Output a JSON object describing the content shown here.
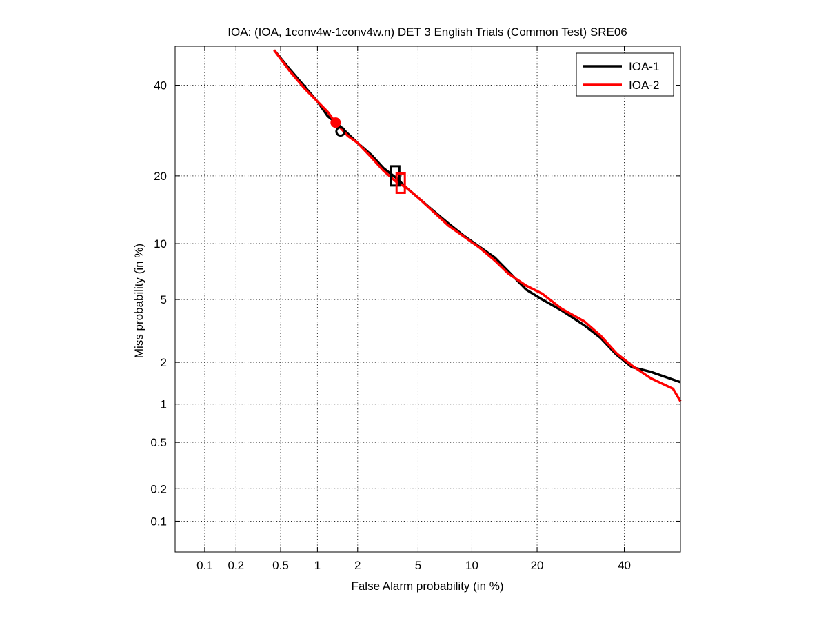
{
  "chart_data": {
    "type": "line",
    "title": "IOA: (IOA, 1conv4w-1conv4w.n) DET 3 English Trials (Common Test) SRE06",
    "xlabel": "False Alarm probability (in %)",
    "ylabel": "Miss probability (in %)",
    "x_scale": "probit",
    "y_scale": "probit",
    "xlim": [
      0.05,
      55
    ],
    "ylim": [
      0.05,
      50
    ],
    "grid": true,
    "legend_position": "top-right",
    "x_ticks": [
      0.1,
      0.2,
      0.5,
      1,
      2,
      5,
      10,
      20,
      40
    ],
    "x_tick_labels": [
      "0.1",
      "0.2",
      "0.5",
      "1",
      "2",
      "5",
      "10",
      "20",
      "40"
    ],
    "y_ticks": [
      0.1,
      0.2,
      0.5,
      1,
      2,
      5,
      10,
      20,
      40
    ],
    "y_tick_labels": [
      "0.1",
      "0.2",
      "0.5",
      "1",
      "2",
      "5",
      "10",
      "20",
      "40"
    ],
    "series": [
      {
        "name": "IOA-1",
        "color": "#000000",
        "x": [
          0.44,
          0.6,
          0.8,
          1.0,
          1.2,
          1.45,
          1.7,
          2.0,
          2.5,
          3.0,
          3.7,
          4.2,
          5.0,
          6.0,
          7.5,
          9.0,
          11.0,
          13.0,
          15.0,
          18.0,
          21.0,
          25.0,
          30.0,
          34.0,
          38.0,
          42.0,
          47.0,
          55.0
        ],
        "y": [
          49.0,
          44.0,
          39.5,
          36.0,
          32.5,
          30.5,
          28.5,
          26.5,
          24.0,
          21.5,
          19.5,
          18.0,
          16.3,
          14.5,
          12.5,
          11.0,
          9.6,
          8.5,
          7.2,
          5.7,
          5.0,
          4.3,
          3.5,
          2.9,
          2.25,
          1.85,
          1.72,
          1.45
        ]
      },
      {
        "name": "IOA-2",
        "color": "#ff0000",
        "x": [
          0.44,
          0.6,
          0.8,
          1.0,
          1.2,
          1.38,
          1.7,
          2.0,
          2.5,
          3.0,
          3.7,
          4.2,
          5.0,
          6.0,
          7.5,
          9.0,
          11.0,
          13.0,
          15.0,
          18.0,
          21.0,
          25.0,
          30.0,
          34.0,
          38.0,
          42.0,
          47.0,
          53.0,
          55.0
        ],
        "y": [
          49.0,
          43.5,
          39.0,
          36.0,
          33.5,
          31.0,
          28.0,
          26.5,
          23.5,
          21.0,
          18.8,
          18.0,
          16.3,
          14.4,
          12.2,
          10.9,
          9.5,
          8.2,
          7.0,
          6.0,
          5.4,
          4.4,
          3.7,
          3.0,
          2.3,
          1.9,
          1.55,
          1.3,
          1.05
        ]
      }
    ],
    "markers": [
      {
        "series": "IOA-1",
        "shape": "circle",
        "x": 1.5,
        "y": 29.0
      },
      {
        "series": "IOA-2",
        "shape": "circle",
        "x": 1.38,
        "y": 31.0
      },
      {
        "series": "IOA-1",
        "shape": "square",
        "x": 3.6,
        "y": 20.0
      },
      {
        "series": "IOA-2",
        "shape": "square",
        "x": 3.9,
        "y": 18.7
      }
    ]
  }
}
